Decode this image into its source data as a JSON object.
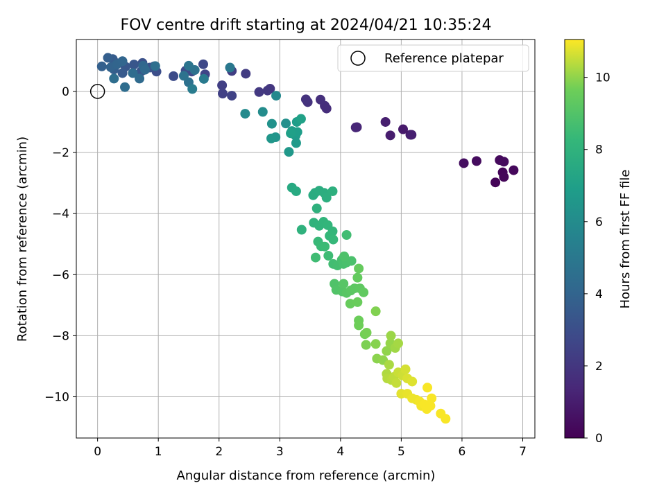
{
  "chart_data": {
    "type": "scatter",
    "title": "FOV centre drift starting at 2024/04/21 10:35:24",
    "xlabel": "Angular distance from reference (arcmin)",
    "ylabel": "Rotation from reference (arcmin)",
    "xlim": [
      -0.35,
      7.2
    ],
    "ylim": [
      -11.35,
      1.7
    ],
    "xticks": [
      0,
      1,
      2,
      3,
      4,
      5,
      6,
      7
    ],
    "yticks": [
      0,
      -2,
      -4,
      -6,
      -8,
      -10
    ],
    "xtick_labels": [
      "0",
      "1",
      "2",
      "3",
      "4",
      "5",
      "6",
      "7"
    ],
    "ytick_labels": [
      "0",
      "−2",
      "−4",
      "−6",
      "−8",
      "−10"
    ],
    "grid": true,
    "legend": {
      "placement": "top-right",
      "entries": [
        "Reference platepar"
      ]
    },
    "reference_point": {
      "x": 0,
      "y": 0
    },
    "colorbar": {
      "label": "Hours from first FF file",
      "range": [
        0,
        11.05
      ],
      "ticks": [
        0,
        2,
        4,
        6,
        8,
        10
      ],
      "tick_labels": [
        "0",
        "2",
        "4",
        "6",
        "8",
        "10"
      ],
      "colormap": "viridis"
    },
    "series": [
      {
        "points": [
          [
            6.55,
            -2.98,
            0.1
          ],
          [
            6.67,
            -2.65,
            0.15
          ],
          [
            6.69,
            -2.8,
            0.2
          ],
          [
            6.85,
            -2.58,
            0.25
          ],
          [
            6.62,
            -2.25,
            0.3
          ],
          [
            6.69,
            -2.3,
            0.35
          ],
          [
            6.24,
            -2.28,
            0.4
          ],
          [
            6.03,
            -2.35,
            0.45
          ],
          [
            5.15,
            -1.42,
            0.8
          ],
          [
            5.03,
            -1.24,
            0.9
          ],
          [
            4.82,
            -1.44,
            1.0
          ],
          [
            4.74,
            -1.0,
            1.05
          ],
          [
            5.17,
            -1.42,
            1.1
          ],
          [
            4.27,
            -1.17,
            1.3
          ],
          [
            4.25,
            -1.18,
            1.35
          ],
          [
            3.77,
            -0.56,
            1.6
          ],
          [
            3.74,
            -0.47,
            1.65
          ],
          [
            3.67,
            -0.27,
            1.7
          ],
          [
            3.46,
            -0.35,
            1.8
          ],
          [
            3.43,
            -0.26,
            1.85
          ],
          [
            2.84,
            0.09,
            2.0
          ],
          [
            2.8,
            0.03,
            2.05
          ],
          [
            2.66,
            -0.02,
            2.1
          ],
          [
            2.44,
            0.58,
            2.2
          ],
          [
            2.21,
            0.67,
            2.3
          ],
          [
            2.05,
            0.2,
            2.35
          ],
          [
            2.06,
            -0.07,
            2.4
          ],
          [
            2.21,
            -0.14,
            2.45
          ],
          [
            1.77,
            0.56,
            2.6
          ],
          [
            1.74,
            0.89,
            2.7
          ],
          [
            1.55,
            0.65,
            2.8
          ],
          [
            1.45,
            0.68,
            2.85
          ],
          [
            1.25,
            0.5,
            2.9
          ],
          [
            0.97,
            0.65,
            3.0
          ],
          [
            0.93,
            0.82,
            3.05
          ],
          [
            0.74,
            0.93,
            3.1
          ],
          [
            0.86,
            0.78,
            3.2
          ],
          [
            0.72,
            0.66,
            3.3
          ],
          [
            0.6,
            0.88,
            3.35
          ],
          [
            0.46,
            0.81,
            3.4
          ],
          [
            0.41,
            0.6,
            3.5
          ],
          [
            0.33,
            0.92,
            3.55
          ],
          [
            0.25,
            1.06,
            3.6
          ],
          [
            0.27,
            0.72,
            3.7
          ],
          [
            0.17,
            1.1,
            3.75
          ],
          [
            0.07,
            0.82,
            3.8
          ],
          [
            0.22,
            0.79,
            3.9
          ],
          [
            0.32,
            0.89,
            4.0
          ],
          [
            0.41,
            0.99,
            4.05
          ],
          [
            0.75,
            0.84,
            4.1
          ],
          [
            0.78,
            0.71,
            4.2
          ],
          [
            0.69,
            0.42,
            4.3
          ],
          [
            0.58,
            0.6,
            4.35
          ],
          [
            0.45,
            0.14,
            4.4
          ],
          [
            0.27,
            0.42,
            4.45
          ],
          [
            0.95,
            0.83,
            4.5
          ],
          [
            1.5,
            0.3,
            4.6
          ],
          [
            1.42,
            0.51,
            4.65
          ],
          [
            1.6,
            0.7,
            4.7
          ],
          [
            1.5,
            0.84,
            4.8
          ],
          [
            2.18,
            0.78,
            5.0
          ],
          [
            1.75,
            0.41,
            5.1
          ],
          [
            1.56,
            0.08,
            5.2
          ],
          [
            2.94,
            -0.14,
            5.8
          ],
          [
            2.43,
            -0.73,
            5.9
          ],
          [
            2.72,
            -0.67,
            6.0
          ],
          [
            3.1,
            -1.05,
            6.2
          ],
          [
            2.87,
            -1.06,
            6.3
          ],
          [
            2.93,
            -1.5,
            6.4
          ],
          [
            2.86,
            -1.54,
            6.5
          ],
          [
            3.15,
            -1.98,
            6.6
          ],
          [
            3.27,
            -1.69,
            6.7
          ],
          [
            3.26,
            -1.45,
            6.75
          ],
          [
            3.2,
            -1.3,
            6.8
          ],
          [
            3.28,
            -1.0,
            6.85
          ],
          [
            3.29,
            -1.33,
            6.9
          ],
          [
            3.18,
            -1.37,
            7.0
          ],
          [
            3.35,
            -0.9,
            7.05
          ],
          [
            3.2,
            -3.15,
            7.5
          ],
          [
            3.27,
            -3.27,
            7.55
          ],
          [
            3.55,
            -3.4,
            7.6
          ],
          [
            3.58,
            -3.32,
            7.65
          ],
          [
            3.65,
            -3.25,
            7.7
          ],
          [
            3.73,
            -3.32,
            7.75
          ],
          [
            3.77,
            -3.48,
            7.8
          ],
          [
            3.87,
            -3.27,
            7.85
          ],
          [
            3.61,
            -3.83,
            7.9
          ],
          [
            3.36,
            -4.53,
            7.95
          ],
          [
            3.56,
            -4.3,
            8.0
          ],
          [
            3.65,
            -4.4,
            8.05
          ],
          [
            3.72,
            -4.27,
            8.1
          ],
          [
            3.79,
            -4.38,
            8.15
          ],
          [
            3.87,
            -4.58,
            8.2
          ],
          [
            3.82,
            -4.73,
            8.25
          ],
          [
            3.88,
            -4.85,
            8.3
          ],
          [
            3.63,
            -4.92,
            8.35
          ],
          [
            3.68,
            -5.07,
            8.4
          ],
          [
            3.74,
            -5.08,
            8.45
          ],
          [
            3.8,
            -5.38,
            8.5
          ],
          [
            3.59,
            -5.44,
            8.55
          ],
          [
            4.1,
            -4.7,
            8.6
          ],
          [
            3.88,
            -5.65,
            8.6
          ],
          [
            3.95,
            -5.7,
            8.65
          ],
          [
            4.02,
            -5.52,
            8.7
          ],
          [
            4.05,
            -5.65,
            8.75
          ],
          [
            4.1,
            -5.6,
            8.8
          ],
          [
            4.18,
            -5.55,
            8.85
          ],
          [
            4.06,
            -5.4,
            8.9
          ],
          [
            3.9,
            -6.3,
            8.95
          ],
          [
            3.93,
            -6.5,
            9.0
          ],
          [
            4.03,
            -6.55,
            9.05
          ],
          [
            4.05,
            -6.3,
            9.1
          ],
          [
            4.1,
            -6.6,
            9.15
          ],
          [
            4.17,
            -6.52,
            9.2
          ],
          [
            4.23,
            -6.45,
            9.25
          ],
          [
            4.32,
            -6.45,
            9.3
          ],
          [
            4.38,
            -6.58,
            9.35
          ],
          [
            4.28,
            -6.1,
            9.4
          ],
          [
            4.3,
            -5.8,
            9.45
          ],
          [
            4.16,
            -6.95,
            9.5
          ],
          [
            4.28,
            -6.9,
            9.55
          ],
          [
            4.3,
            -7.5,
            9.6
          ],
          [
            4.3,
            -7.66,
            9.65
          ],
          [
            4.4,
            -7.95,
            9.7
          ],
          [
            4.43,
            -7.9,
            9.75
          ],
          [
            4.42,
            -8.3,
            9.8
          ],
          [
            4.58,
            -7.2,
            9.85
          ],
          [
            4.58,
            -8.27,
            9.9
          ],
          [
            4.6,
            -8.75,
            9.95
          ],
          [
            4.7,
            -8.8,
            10.0
          ],
          [
            4.76,
            -8.5,
            10.0
          ],
          [
            4.82,
            -8.25,
            10.05
          ],
          [
            4.83,
            -8.0,
            10.1
          ],
          [
            4.9,
            -8.4,
            10.15
          ],
          [
            4.95,
            -8.25,
            10.2
          ],
          [
            4.8,
            -8.95,
            10.25
          ],
          [
            4.76,
            -9.25,
            10.3
          ],
          [
            4.77,
            -9.4,
            10.35
          ],
          [
            4.84,
            -9.45,
            10.4
          ],
          [
            4.88,
            -9.35,
            10.45
          ],
          [
            4.92,
            -9.55,
            10.5
          ],
          [
            4.95,
            -9.2,
            10.55
          ],
          [
            5.02,
            -9.3,
            10.6
          ],
          [
            5.07,
            -9.1,
            10.65
          ],
          [
            5.1,
            -9.4,
            10.7
          ],
          [
            5.18,
            -9.5,
            10.75
          ],
          [
            5.0,
            -9.9,
            10.8
          ],
          [
            5.1,
            -9.9,
            10.85
          ],
          [
            5.18,
            -10.05,
            10.9
          ],
          [
            5.25,
            -10.1,
            10.9
          ],
          [
            5.3,
            -10.15,
            10.95
          ],
          [
            5.33,
            -10.3,
            10.95
          ],
          [
            5.38,
            -10.25,
            11.0
          ],
          [
            5.42,
            -10.4,
            11.0
          ],
          [
            5.48,
            -10.3,
            11.0
          ],
          [
            5.5,
            -10.05,
            11.0
          ],
          [
            5.43,
            -9.7,
            11.0
          ],
          [
            5.65,
            -10.55,
            11.0
          ],
          [
            5.73,
            -10.72,
            11.0
          ]
        ]
      }
    ]
  }
}
